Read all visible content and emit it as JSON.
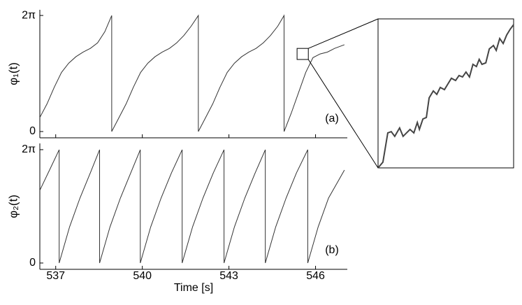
{
  "chart_data": [
    {
      "type": "line",
      "ylabel": "φ₁(t)",
      "annotation": "(a)",
      "color": "#333333",
      "xlim": [
        536.45,
        547.1
      ],
      "ylim": [
        -0.34,
        6.59
      ],
      "xticks": [
        537,
        540,
        543,
        546
      ],
      "xtick_labels": false,
      "yticks": [
        0,
        {
          "value": 6.283,
          "label": "2π"
        }
      ],
      "x": [
        536.45,
        536.7,
        536.95,
        537.2,
        537.45,
        537.7,
        537.95,
        538.2,
        538.45,
        538.7,
        538.94,
        538.94,
        539.19,
        539.44,
        539.69,
        539.94,
        540.19,
        540.44,
        540.69,
        540.94,
        541.19,
        541.44,
        541.69,
        541.94,
        541.94,
        542.19,
        542.44,
        542.69,
        542.94,
        543.19,
        543.44,
        543.69,
        543.94,
        544.19,
        544.44,
        544.69,
        544.91,
        544.91,
        545.16,
        545.41,
        545.66,
        545.91,
        546.16,
        546.41,
        546.66,
        547.0
      ],
      "values": [
        0.76,
        1.5,
        2.4,
        3.2,
        3.7,
        4.05,
        4.3,
        4.5,
        4.8,
        5.4,
        6.28,
        0,
        0.75,
        1.5,
        2.4,
        3.2,
        3.7,
        4.05,
        4.3,
        4.5,
        4.8,
        5.2,
        5.7,
        6.28,
        0,
        0.75,
        1.5,
        2.4,
        3.2,
        3.7,
        4.05,
        4.3,
        4.5,
        4.8,
        5.2,
        5.7,
        6.28,
        0,
        1.0,
        2.1,
        3.2,
        4.0,
        4.2,
        4.3,
        4.5,
        4.7
      ]
    },
    {
      "type": "line",
      "ylabel": "φ₂(t)",
      "xlabel": "Time [s]",
      "annotation": "(b)",
      "color": "#333333",
      "xlim": [
        536.45,
        547.1
      ],
      "ylim": [
        -0.35,
        6.63
      ],
      "xticks": [
        537,
        540,
        543,
        546
      ],
      "xtick_labels": true,
      "yticks": [
        0,
        {
          "value": 6.283,
          "label": "2π"
        }
      ],
      "x": [
        536.45,
        536.8,
        537.12,
        537.12,
        537.48,
        537.84,
        538.2,
        538.52,
        538.52,
        538.88,
        539.24,
        539.6,
        539.93,
        539.93,
        540.29,
        540.65,
        541.01,
        541.38,
        541.38,
        541.74,
        542.1,
        542.46,
        542.83,
        542.83,
        543.19,
        543.55,
        543.91,
        544.26,
        544.26,
        544.62,
        544.98,
        545.34,
        545.73,
        545.73,
        546.09,
        546.45,
        547.0
      ],
      "values": [
        4.03,
        5.2,
        6.28,
        0,
        2.0,
        3.6,
        5.0,
        6.28,
        0,
        2.0,
        3.6,
        5.0,
        6.28,
        0,
        2.0,
        3.6,
        5.0,
        6.28,
        0,
        2.0,
        3.6,
        5.0,
        6.28,
        0,
        2.0,
        3.6,
        5.0,
        6.28,
        0,
        2.0,
        3.6,
        5.0,
        6.28,
        0,
        2.0,
        3.6,
        5.15
      ]
    },
    {
      "type": "line",
      "color": "#444444",
      "xlim": [
        545.36,
        545.75
      ],
      "ylim": [
        3.9,
        4.5
      ],
      "x": [
        545.36,
        545.374,
        545.388,
        545.398,
        545.408,
        545.422,
        545.432,
        545.442,
        545.452,
        545.463,
        545.473,
        545.479,
        545.489,
        545.499,
        545.507,
        545.519,
        545.529,
        545.539,
        545.551,
        545.561,
        545.571,
        545.583,
        545.593,
        545.603,
        545.613,
        545.623,
        545.633,
        545.643,
        545.651,
        545.659,
        545.67,
        545.68,
        545.692,
        545.7,
        545.71,
        545.72,
        545.73,
        545.74,
        545.75
      ],
      "values": [
        3.9,
        3.923,
        4.041,
        4.046,
        4.027,
        4.061,
        4.027,
        4.041,
        4.055,
        4.041,
        4.083,
        4.055,
        4.097,
        4.103,
        4.182,
        4.21,
        4.196,
        4.224,
        4.215,
        4.238,
        4.261,
        4.252,
        4.272,
        4.266,
        4.286,
        4.266,
        4.317,
        4.308,
        4.337,
        4.317,
        4.323,
        4.379,
        4.393,
        4.373,
        4.421,
        4.401,
        4.435,
        4.458,
        4.477
      ]
    }
  ]
}
